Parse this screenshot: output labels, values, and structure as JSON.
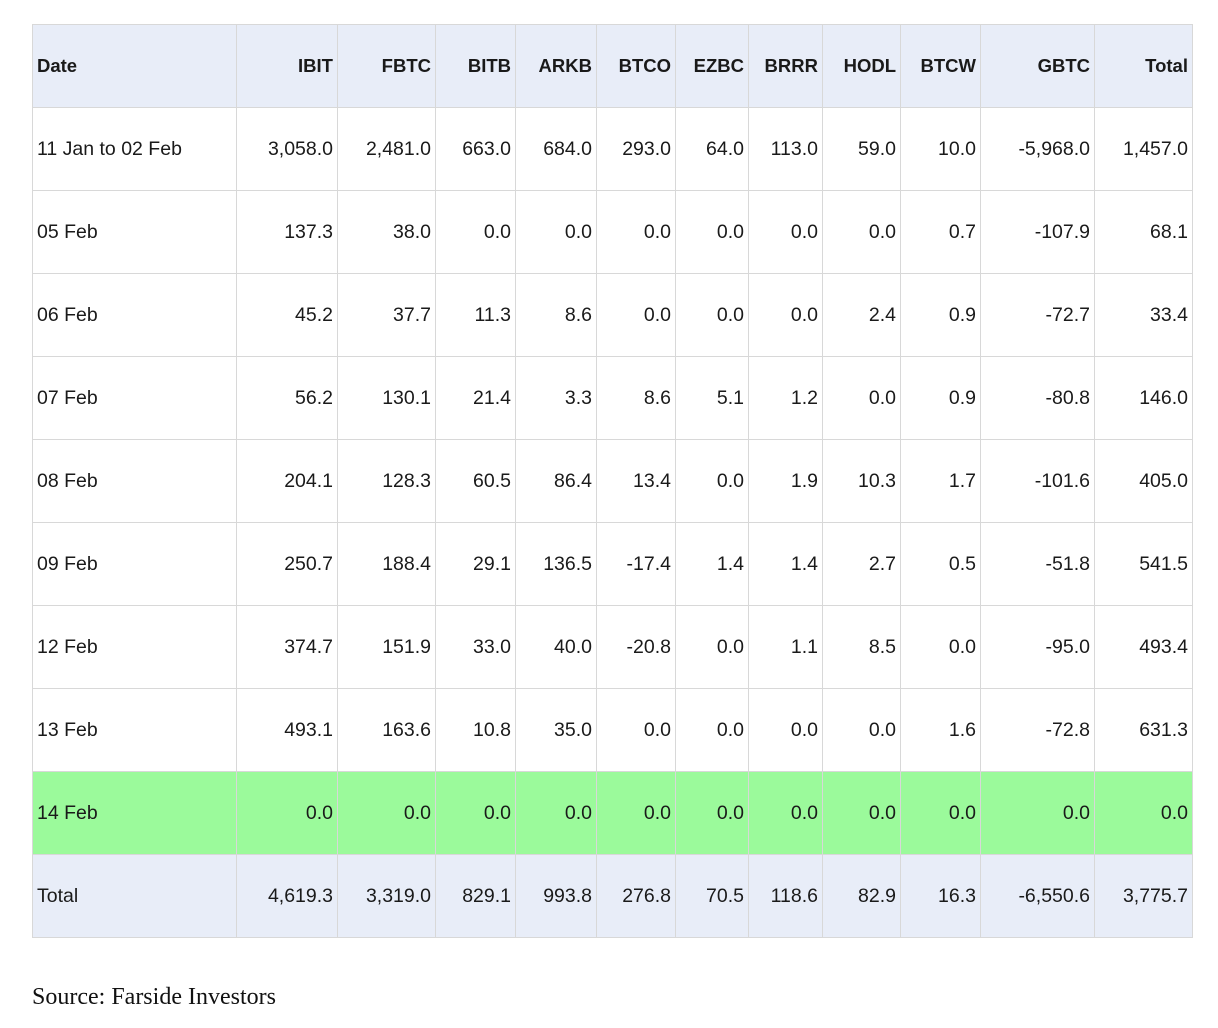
{
  "table": {
    "columns": [
      "Date",
      "IBIT",
      "FBTC",
      "BITB",
      "ARKB",
      "BTCO",
      "EZBC",
      "BRRR",
      "HODL",
      "BTCW",
      "GBTC",
      "Total"
    ],
    "rows": [
      {
        "date": "11 Jan to 02 Feb",
        "values": [
          "3,058.0",
          "2,481.0",
          "663.0",
          "684.0",
          "293.0",
          "64.0",
          "113.0",
          "59.0",
          "10.0",
          "-5,968.0",
          "1,457.0"
        ]
      },
      {
        "date": "05 Feb",
        "values": [
          "137.3",
          "38.0",
          "0.0",
          "0.0",
          "0.0",
          "0.0",
          "0.0",
          "0.0",
          "0.7",
          "-107.9",
          "68.1"
        ]
      },
      {
        "date": "06 Feb",
        "values": [
          "45.2",
          "37.7",
          "11.3",
          "8.6",
          "0.0",
          "0.0",
          "0.0",
          "2.4",
          "0.9",
          "-72.7",
          "33.4"
        ]
      },
      {
        "date": "07 Feb",
        "values": [
          "56.2",
          "130.1",
          "21.4",
          "3.3",
          "8.6",
          "5.1",
          "1.2",
          "0.0",
          "0.9",
          "-80.8",
          "146.0"
        ]
      },
      {
        "date": "08 Feb",
        "values": [
          "204.1",
          "128.3",
          "60.5",
          "86.4",
          "13.4",
          "0.0",
          "1.9",
          "10.3",
          "1.7",
          "-101.6",
          "405.0"
        ]
      },
      {
        "date": "09 Feb",
        "values": [
          "250.7",
          "188.4",
          "29.1",
          "136.5",
          "-17.4",
          "1.4",
          "1.4",
          "2.7",
          "0.5",
          "-51.8",
          "541.5"
        ]
      },
      {
        "date": "12 Feb",
        "values": [
          "374.7",
          "151.9",
          "33.0",
          "40.0",
          "-20.8",
          "0.0",
          "1.1",
          "8.5",
          "0.0",
          "-95.0",
          "493.4"
        ]
      },
      {
        "date": "13 Feb",
        "values": [
          "493.1",
          "163.6",
          "10.8",
          "35.0",
          "0.0",
          "0.0",
          "0.0",
          "0.0",
          "1.6",
          "-72.8",
          "631.3"
        ]
      },
      {
        "date": "14 Feb",
        "values": [
          "0.0",
          "0.0",
          "0.0",
          "0.0",
          "0.0",
          "0.0",
          "0.0",
          "0.0",
          "0.0",
          "0.0",
          "0.0"
        ],
        "highlight": true
      }
    ],
    "total": {
      "label": "Total",
      "values": [
        "4,619.3",
        "3,319.0",
        "829.1",
        "993.8",
        "276.8",
        "70.5",
        "118.6",
        "82.9",
        "16.3",
        "-6,550.6",
        "3,775.7"
      ]
    }
  },
  "colors": {
    "header_bg": "#e8edf8",
    "highlight_bg": "#9bfa9b",
    "border": "#d8d8d8"
  },
  "source_text": "Source: Farside Investors"
}
